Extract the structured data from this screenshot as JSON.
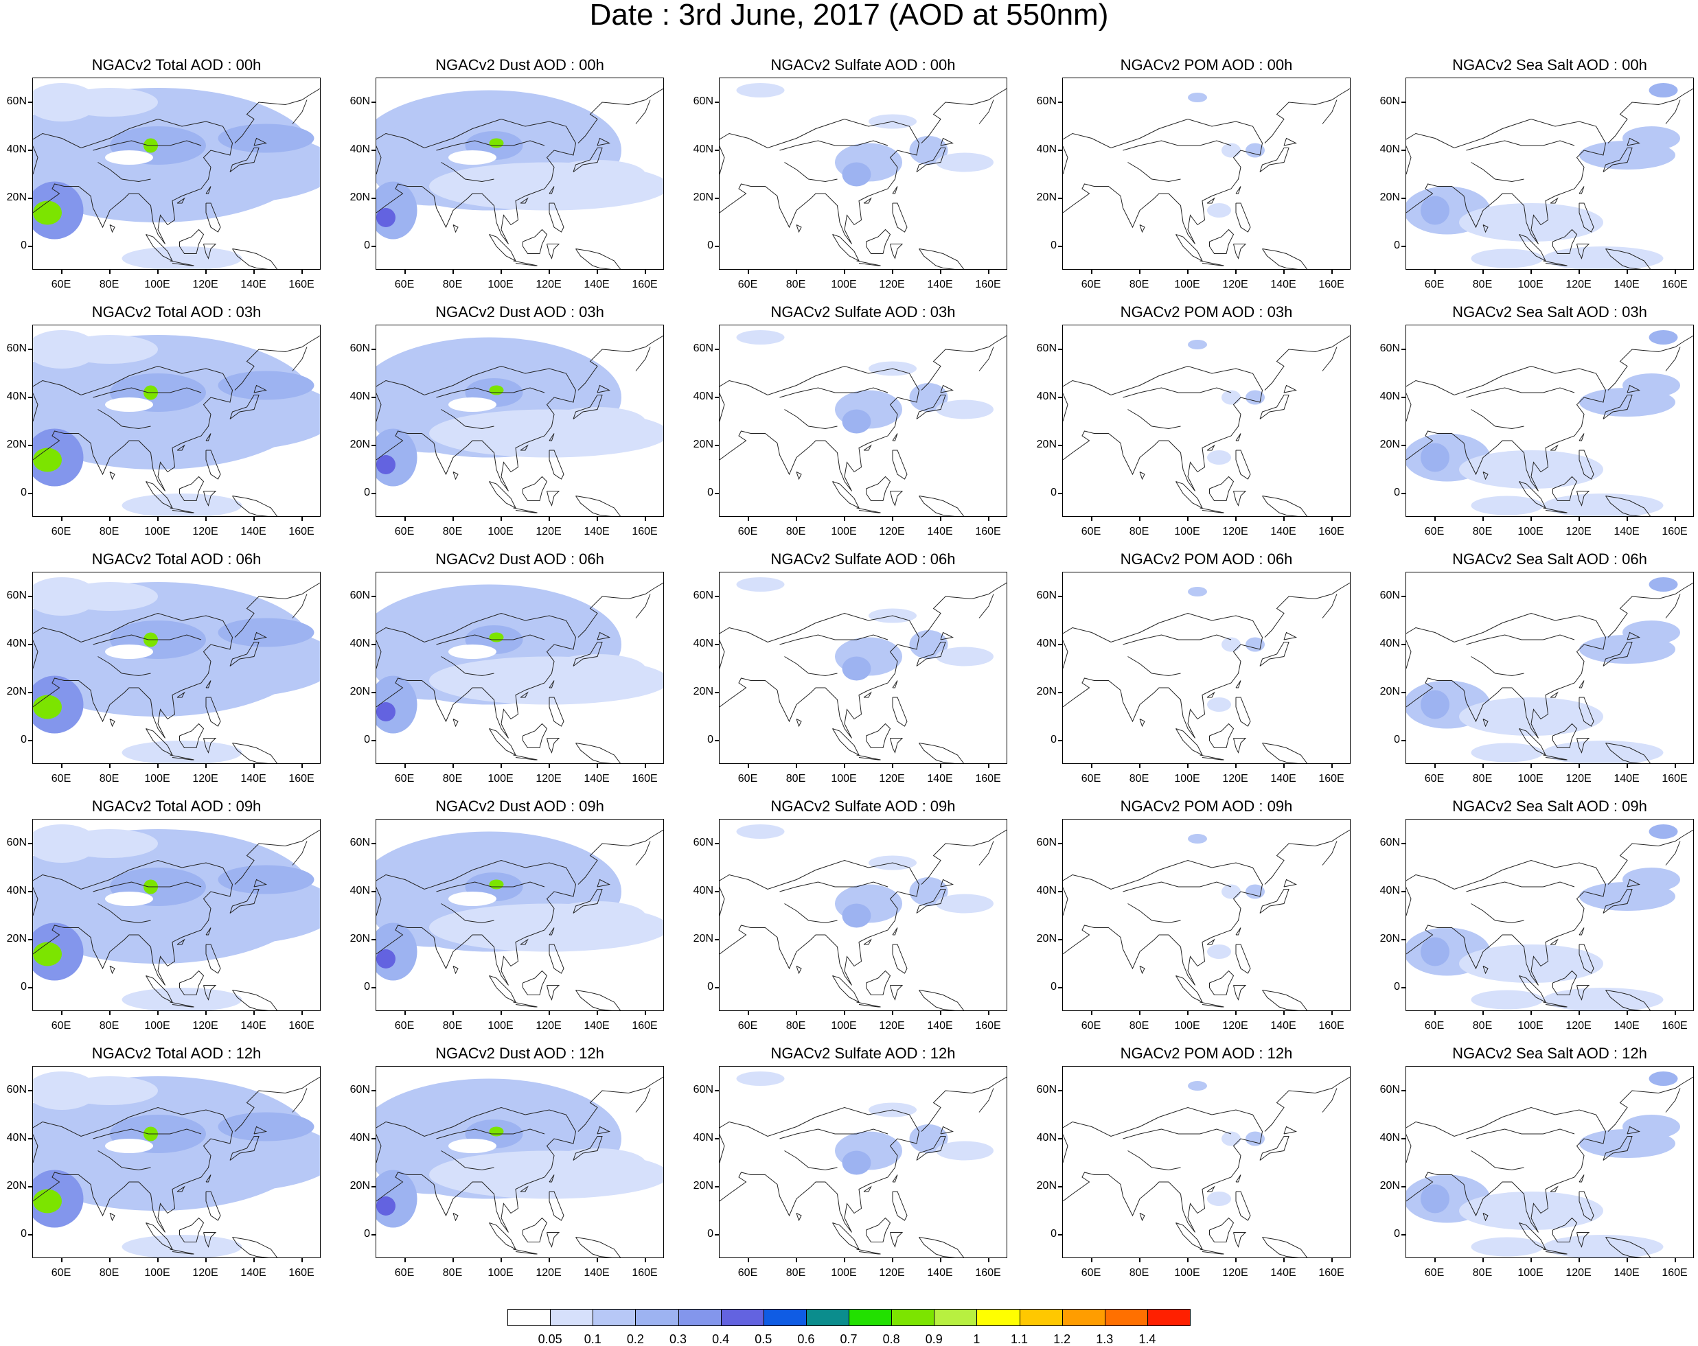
{
  "title": "Date : 3rd June, 2017 (AOD at 550nm)",
  "panel_rows": [
    [
      "NGACv2 Total AOD : 00h",
      "NGACv2 Dust AOD : 00h",
      "NGACv2 Sulfate AOD : 00h",
      "NGACv2 POM AOD : 00h",
      "NGACv2 Sea Salt AOD : 00h"
    ],
    [
      "NGACv2 Total AOD : 03h",
      "NGACv2 Dust AOD : 03h",
      "NGACv2 Sulfate AOD : 03h",
      "NGACv2 POM AOD : 03h",
      "NGACv2 Sea Salt AOD : 03h"
    ],
    [
      "NGACv2 Total AOD : 06h",
      "NGACv2 Dust AOD : 06h",
      "NGACv2 Sulfate AOD : 06h",
      "NGACv2 POM AOD : 06h",
      "NGACv2 Sea Salt AOD : 06h"
    ],
    [
      "NGACv2 Total AOD : 09h",
      "NGACv2 Dust AOD : 09h",
      "NGACv2 Sulfate AOD : 09h",
      "NGACv2 POM AOD : 09h",
      "NGACv2 Sea Salt  AOD : 09h"
    ],
    [
      "NGACv2 Total AOD  : 12h",
      "NGACv2 Dust AOD : 12h",
      "NGACv2 Sulfate AOD : 12h",
      "NGACv2 POM  AOD : 12h",
      "NGACv2 Sea Salt  AOD : 12h"
    ]
  ],
  "species": [
    "total",
    "dust",
    "sulfate",
    "pom",
    "seasalt"
  ],
  "x_ticks": [
    "60E",
    "80E",
    "100E",
    "120E",
    "140E",
    "160E"
  ],
  "y_ticks": [
    "60N",
    "40N",
    "20N",
    "0"
  ],
  "map_extent": {
    "lon": [
      48,
      168
    ],
    "lat": [
      -10,
      70
    ]
  },
  "colorbar": {
    "colors": [
      "#ffffff",
      "#d6e0fb",
      "#b7c8f6",
      "#9db3f1",
      "#8396ec",
      "#6363e0",
      "#0f5ce4",
      "#0b8d8d",
      "#22e000",
      "#7ce400",
      "#b8f040",
      "#ffff00",
      "#ffc800",
      "#ff9d00",
      "#ff7000",
      "#ff2000"
    ],
    "labels": [
      "0.05",
      "0.1",
      "0.2",
      "0.3",
      "0.4",
      "0.5",
      "0.6",
      "0.7",
      "0.8",
      "0.9",
      "1",
      "1.1",
      "1.2",
      "1.3",
      "1.4"
    ]
  }
}
